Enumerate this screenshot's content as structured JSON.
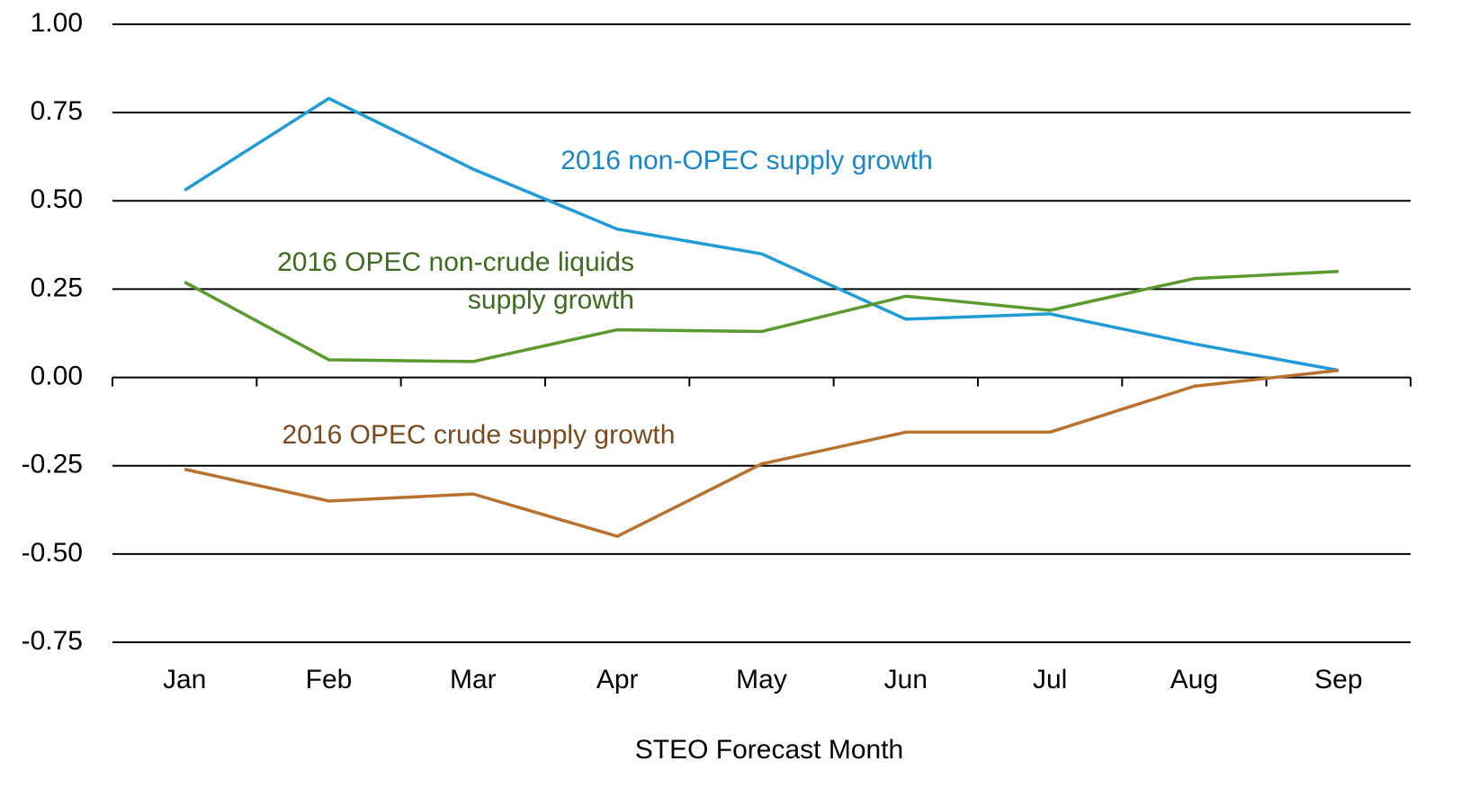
{
  "chart_data": {
    "type": "line",
    "x_label": "STEO Forecast Month",
    "categories": [
      "Jan",
      "Feb",
      "Mar",
      "Apr",
      "May",
      "Jun",
      "Jul",
      "Aug",
      "Sep"
    ],
    "ylim": [
      -0.75,
      1.0
    ],
    "yticks": [
      {
        "value": 1.0,
        "label": "1.00"
      },
      {
        "value": 0.75,
        "label": "0.75"
      },
      {
        "value": 0.5,
        "label": "0.50"
      },
      {
        "value": 0.25,
        "label": "0.25"
      },
      {
        "value": 0,
        "label": "0.00"
      },
      {
        "value": -0.25,
        "label": "-0.25"
      },
      {
        "value": -0.5,
        "label": "-0.50"
      },
      {
        "value": -0.75,
        "label": "-0.75"
      }
    ],
    "grid": true,
    "series": [
      {
        "name": "2016 non-OPEC supply growth",
        "color": "#1f9bd7",
        "values": [
          0.53,
          0.79,
          0.59,
          0.42,
          0.35,
          0.165,
          0.18,
          0.095,
          0.02
        ]
      },
      {
        "name": "2016 OPEC non-crude liquids supply growth",
        "color": "#5a9a2e",
        "values": [
          0.27,
          0.05,
          0.045,
          0.135,
          0.13,
          0.23,
          0.19,
          0.28,
          0.3
        ]
      },
      {
        "name": "2016 OPEC crude supply growth",
        "color": "#b8722e",
        "values": [
          -0.26,
          -0.35,
          -0.33,
          -0.45,
          -0.245,
          -0.155,
          -0.155,
          -0.025,
          0.02
        ]
      }
    ],
    "annotations": [
      {
        "lines": [
          "2016 non-OPEC supply growth"
        ],
        "color": "#1a86c8"
      },
      {
        "lines": [
          "2016 OPEC non-crude liquids",
          "supply growth"
        ],
        "color": "#3d6b1f"
      },
      {
        "lines": [
          "2016 OPEC crude supply growth"
        ],
        "color": "#7a4a1f"
      }
    ]
  }
}
